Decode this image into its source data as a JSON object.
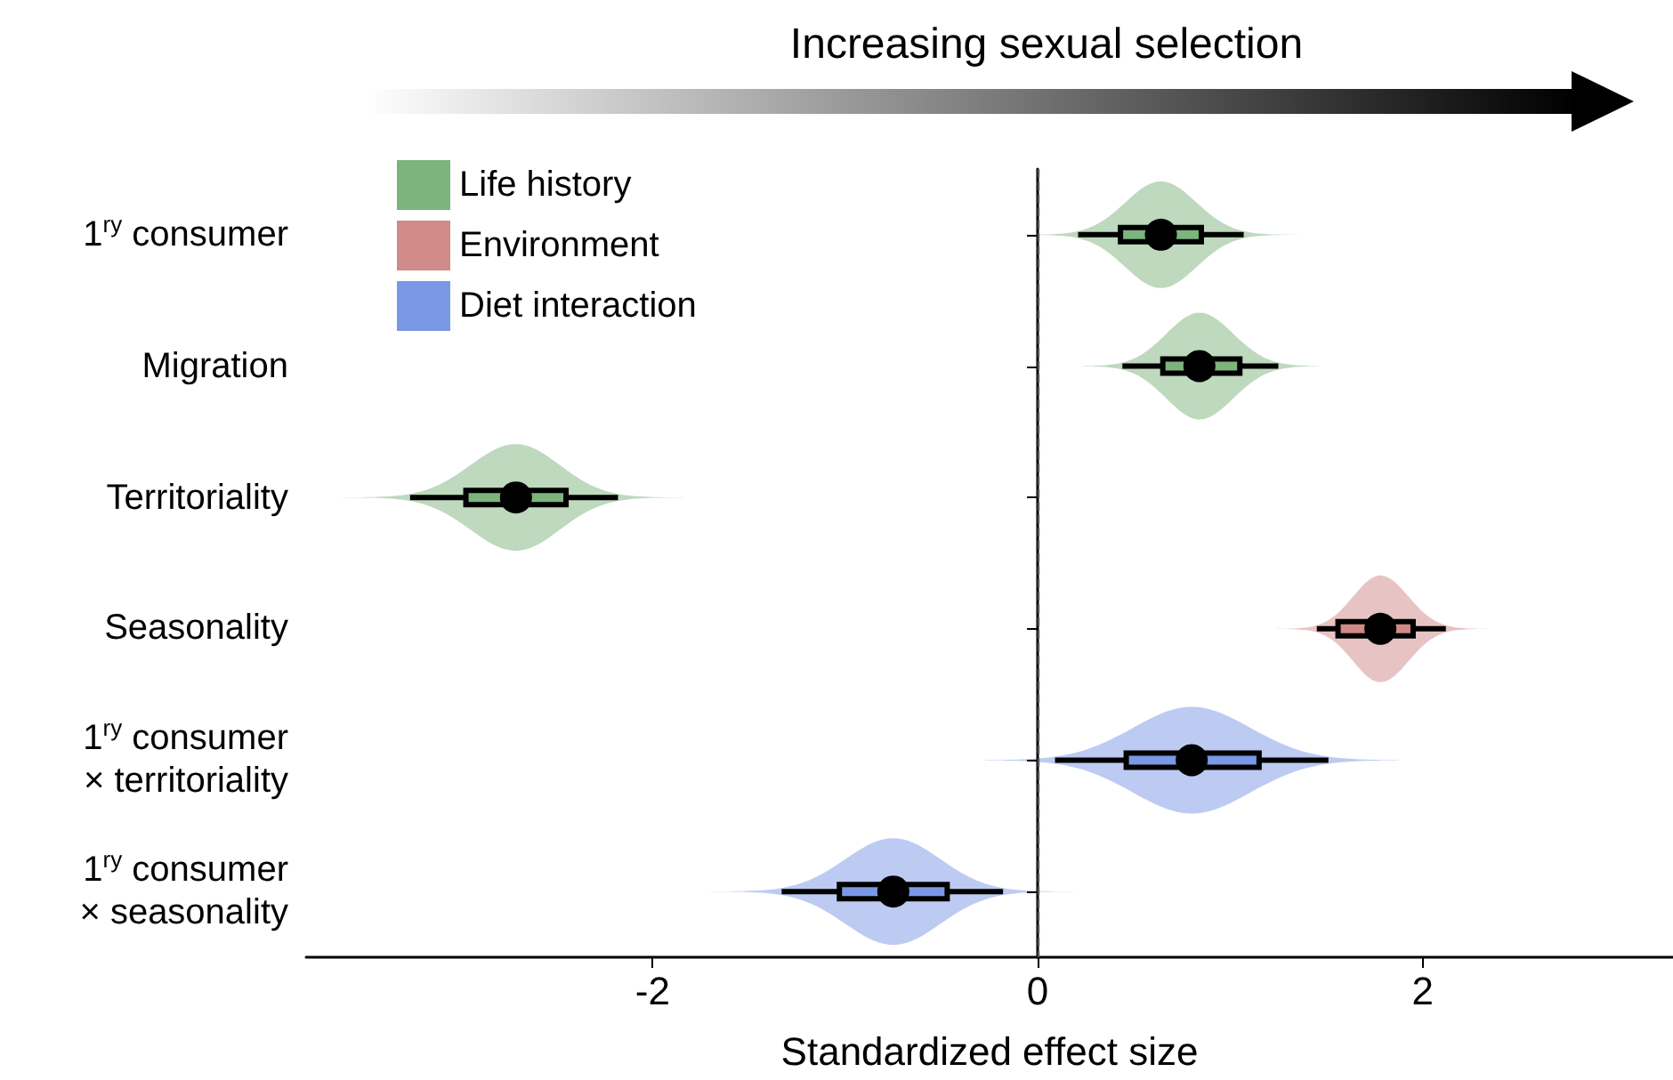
{
  "chart_data": {
    "type": "box",
    "orientation": "horizontal",
    "title": "Increasing sexual selection",
    "xlabel": "Standardized effect size",
    "categories": [
      "1$^{ry}$ consumer",
      "Migration",
      "Territoriality",
      "Seasonality",
      "1$^{ry}$ consumer\n× territoriality",
      "1$^{ry}$ consumer\n× seasonality"
    ],
    "xlim": [
      -3.8,
      3.3
    ],
    "xticks": [
      -2,
      0,
      2
    ],
    "grid": false,
    "legend": "top left",
    "ref_lines": [
      {
        "axis": "x",
        "value": 0,
        "line_style": "dashed",
        "color": "#555555"
      }
    ],
    "series": [
      {
        "name": "Life history",
        "color": "#7db37d",
        "boxes": [
          {
            "low": 0.21,
            "q1": 0.43,
            "median": 0.64,
            "q3": 0.85,
            "high": 1.07
          },
          {
            "low": 0.44,
            "q1": 0.65,
            "median": 0.84,
            "q3": 1.05,
            "high": 1.25
          },
          {
            "low": -3.26,
            "q1": -2.97,
            "median": -2.71,
            "q3": -2.45,
            "high": -2.18
          },
          null,
          null,
          null
        ]
      },
      {
        "name": "Environment",
        "color": "#d08a87",
        "boxes": [
          null,
          null,
          null,
          {
            "low": 1.45,
            "q1": 1.56,
            "median": 1.78,
            "q3": 1.95,
            "high": 2.12
          },
          null,
          null
        ]
      },
      {
        "name": "Diet interaction",
        "color": "#7b98e6",
        "boxes": [
          null,
          null,
          null,
          null,
          {
            "low": 0.09,
            "q1": 0.46,
            "median": 0.8,
            "q3": 1.15,
            "high": 1.51
          },
          {
            "low": -1.33,
            "q1": -1.03,
            "median": -0.75,
            "q3": -0.47,
            "high": -0.18
          }
        ]
      }
    ]
  }
}
